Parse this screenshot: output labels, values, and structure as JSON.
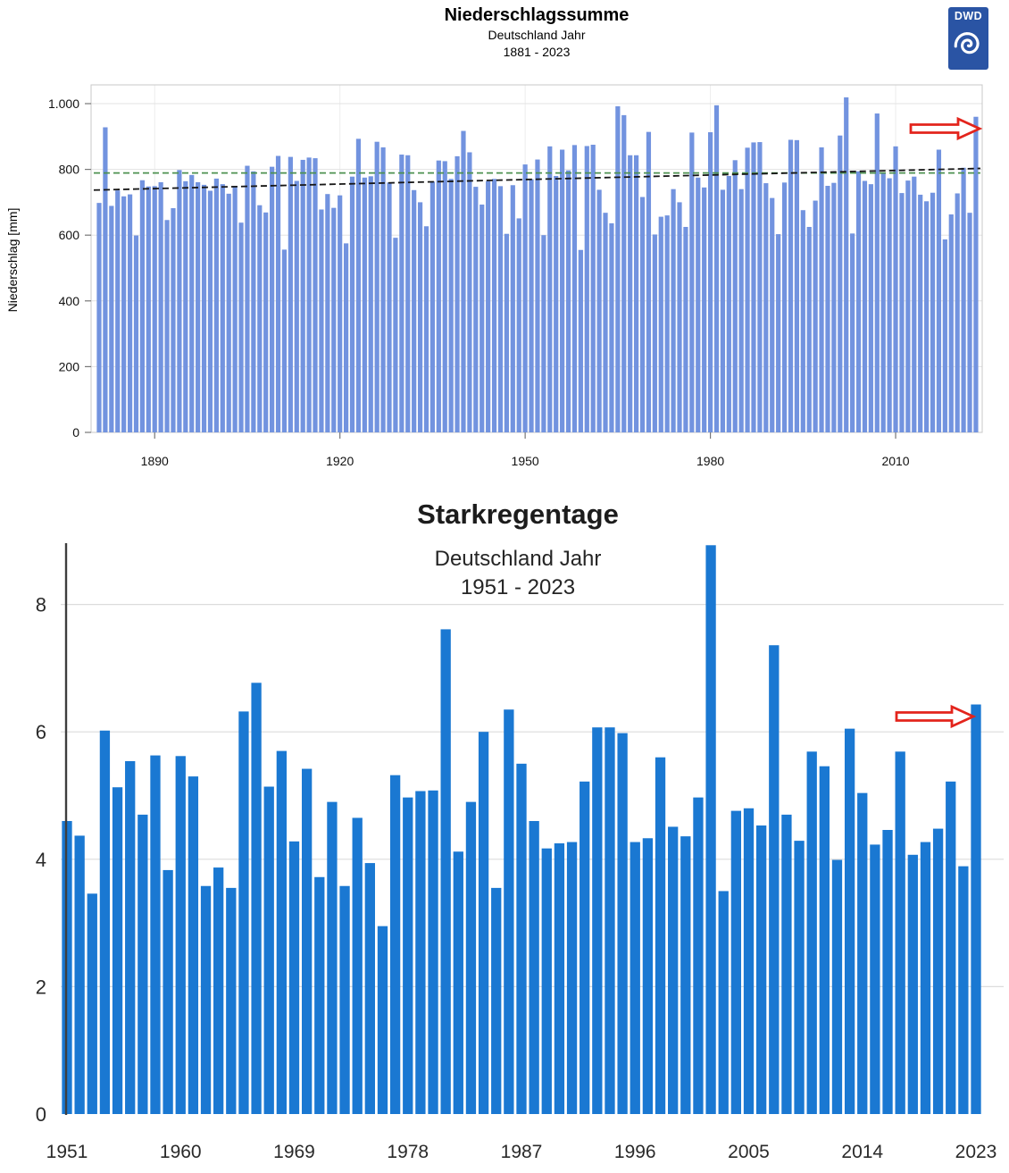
{
  "header": {
    "logo_text": "DWD",
    "logo_color": "#2a54a4"
  },
  "chart_data": [
    {
      "type": "bar",
      "title": "Niederschlagssumme",
      "subtitle": "Deutschland Jahr",
      "period": "1881 - 2023",
      "ylabel": "Niederschlag [mm]",
      "bar_color": "#7293df",
      "grid": true,
      "ylim": [
        0,
        1057
      ],
      "y_tick_values": [
        0,
        200,
        400,
        600,
        800,
        1000
      ],
      "y_tick_labels": [
        "0",
        "200",
        "400",
        "600",
        "800",
        "1.000"
      ],
      "x_tick_years": [
        1890,
        1920,
        1950,
        1980,
        2010
      ],
      "years": {
        "start": 1881,
        "end": 2023
      },
      "values": [
        698,
        928,
        689,
        736,
        718,
        724,
        599,
        767,
        748,
        749,
        761,
        646,
        682,
        798,
        764,
        783,
        761,
        753,
        735,
        772,
        755,
        726,
        750,
        638,
        811,
        794,
        691,
        669,
        808,
        841,
        556,
        838,
        765,
        829,
        836,
        834,
        678,
        725,
        683,
        721,
        575,
        778,
        893,
        775,
        779,
        884,
        867,
        760,
        592,
        845,
        843,
        737,
        700,
        627,
        763,
        827,
        825,
        771,
        840,
        917,
        852,
        747,
        693,
        764,
        771,
        749,
        604,
        752,
        651,
        815,
        770,
        830,
        600,
        870,
        780,
        860,
        797,
        874,
        555,
        871,
        875,
        738,
        668,
        636,
        992,
        965,
        843,
        843,
        716,
        914,
        602,
        656,
        660,
        740,
        700,
        625,
        912,
        775,
        745,
        913,
        995,
        738,
        780,
        828,
        740,
        866,
        882,
        883,
        758,
        713,
        603,
        760,
        890,
        889,
        676,
        625,
        705,
        867,
        750,
        759,
        903,
        1019,
        605,
        794,
        765,
        755,
        970,
        789,
        773,
        870,
        728,
        766,
        778,
        723,
        703,
        729,
        860,
        587,
        663,
        727,
        805,
        668,
        960
      ],
      "trend_line": {
        "label": "linear-trend",
        "style": "dashed",
        "color": "#161616",
        "start_value": 737,
        "end_value": 803
      },
      "reference_line": {
        "label": "mean",
        "style": "dashed",
        "color": "#4d9150",
        "value": 789
      },
      "annotation_arrow": {
        "target_year": 2023,
        "direction": "right",
        "stroke": "#e3241c",
        "fill": "#ffffff"
      }
    },
    {
      "type": "bar",
      "title": "Starkregentage",
      "subtitle": "Deutschland Jahr",
      "period": "1951 - 2023",
      "bar_color": "#1a78d2",
      "grid": true,
      "ylim": [
        0,
        9
      ],
      "y_tick_values": [
        0,
        2,
        4,
        6,
        8
      ],
      "y_tick_labels": [
        "0",
        "2",
        "4",
        "6",
        "8"
      ],
      "x_tick_years": [
        1951,
        1960,
        1969,
        1978,
        1987,
        1996,
        2005,
        2014,
        2023
      ],
      "years": {
        "start": 1951,
        "end": 2023
      },
      "values": [
        4.6,
        4.37,
        3.46,
        6.02,
        5.13,
        5.54,
        4.7,
        5.63,
        3.83,
        5.62,
        5.3,
        3.58,
        3.87,
        3.55,
        6.32,
        6.77,
        5.14,
        5.7,
        4.28,
        5.42,
        3.72,
        4.9,
        3.58,
        4.65,
        3.94,
        2.95,
        5.32,
        4.97,
        5.07,
        5.08,
        7.61,
        4.12,
        4.9,
        6.0,
        3.55,
        6.35,
        5.5,
        4.6,
        4.17,
        4.25,
        4.27,
        5.22,
        6.07,
        6.07,
        5.98,
        4.27,
        4.33,
        5.6,
        4.51,
        4.36,
        4.97,
        8.93,
        3.5,
        4.76,
        4.8,
        4.53,
        7.36,
        4.7,
        4.29,
        5.69,
        5.46,
        3.99,
        6.05,
        5.04,
        4.23,
        4.46,
        5.69,
        4.07,
        4.27,
        4.48,
        5.22,
        3.89,
        6.43
      ],
      "annotation_arrow": {
        "target_year": 2023,
        "direction": "right",
        "stroke": "#e3241c",
        "fill": "#ffffff"
      }
    }
  ]
}
